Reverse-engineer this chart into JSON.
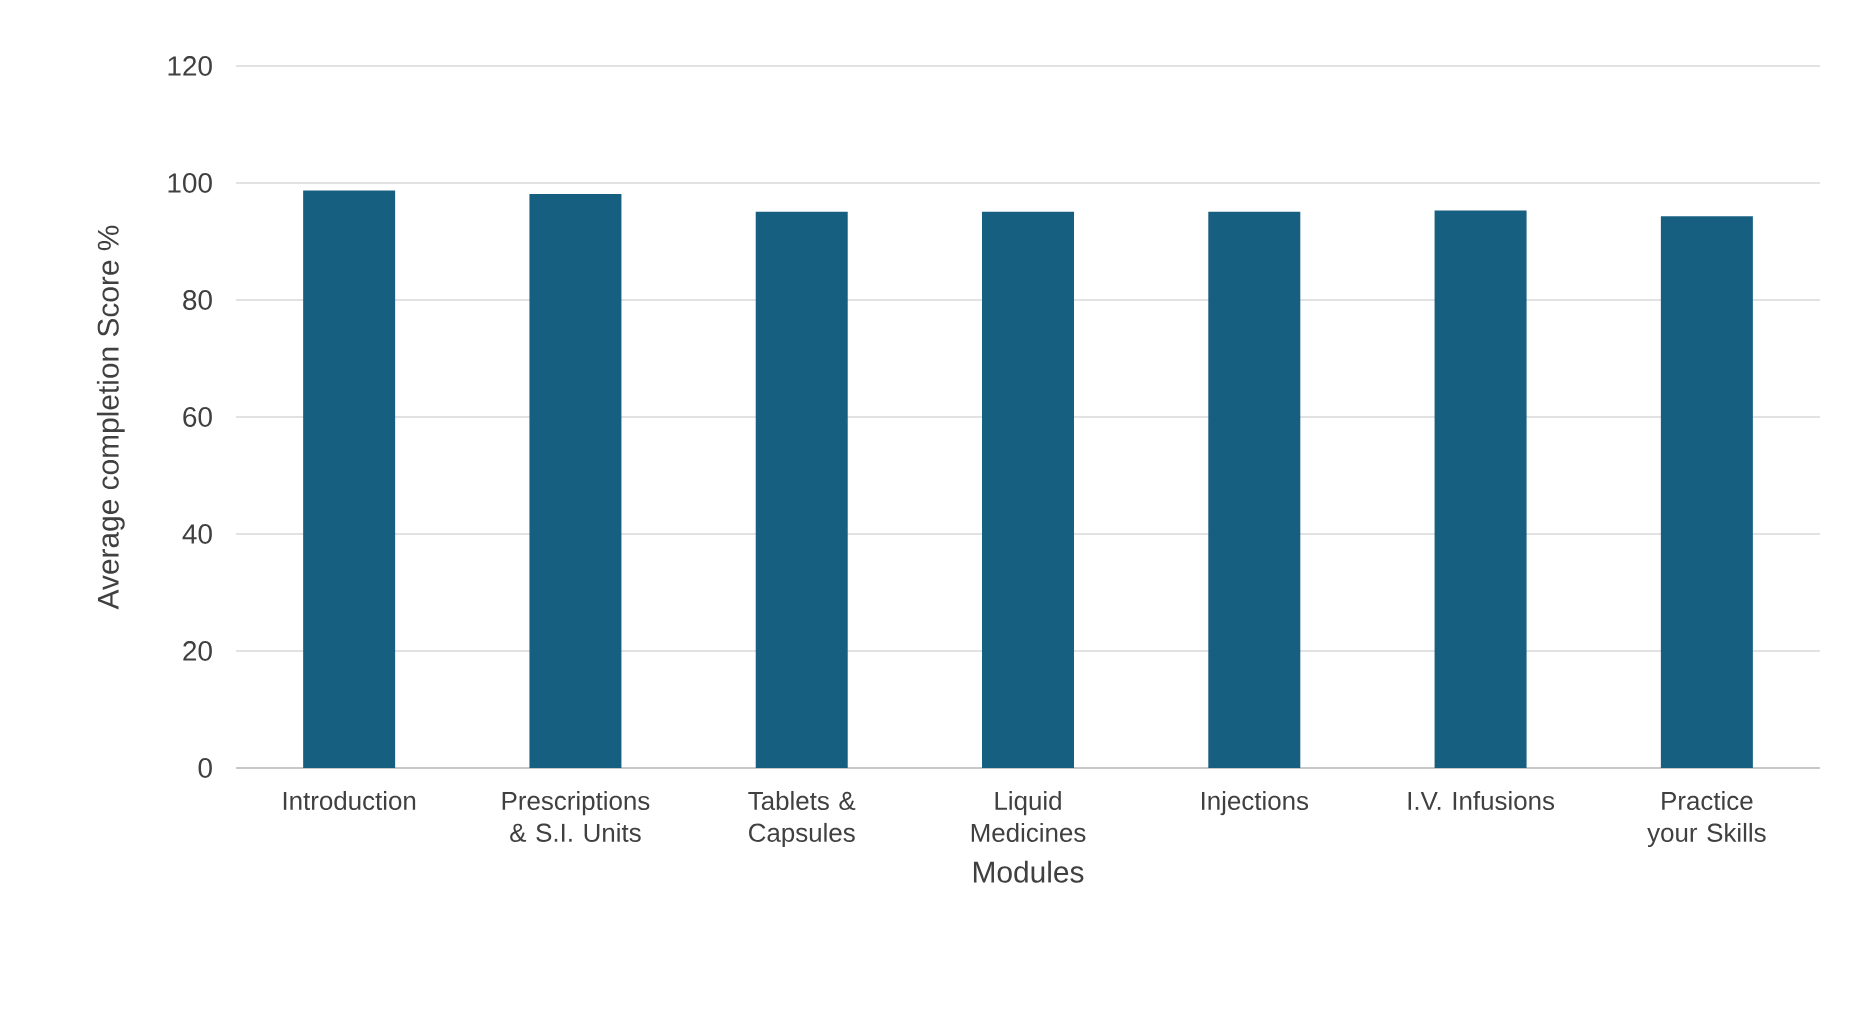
{
  "chart_data": {
    "type": "bar",
    "xlabel": "Modules",
    "ylabel": "Average completion Score %",
    "categories": [
      "Introduction",
      "Prescriptions & S.I. Units",
      "Tablets & Capsules",
      "Liquid Medicines",
      "Injections",
      "I.V. Infusions",
      "Practice your Skills"
    ],
    "values": [
      98.7,
      98.1,
      95.1,
      95.1,
      95.1,
      95.3,
      94.3
    ],
    "color": "#175f80",
    "ylim": [
      0,
      120
    ],
    "yticks": [
      0,
      20,
      40,
      60,
      80,
      100,
      120
    ],
    "grid": "y"
  }
}
